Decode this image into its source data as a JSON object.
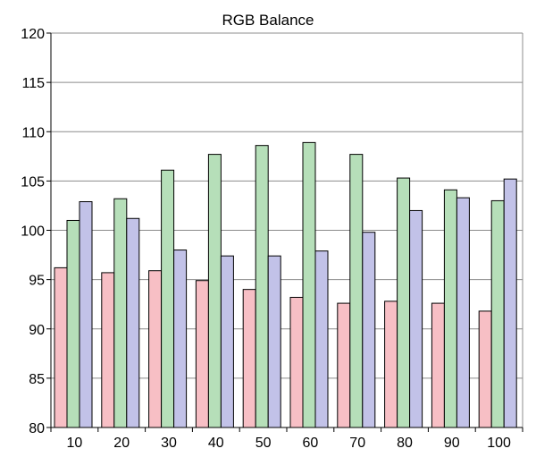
{
  "chart_data": {
    "type": "bar",
    "title": "RGB Balance",
    "xlabel": "",
    "ylabel": "",
    "categories": [
      "10",
      "20",
      "30",
      "40",
      "50",
      "60",
      "70",
      "80",
      "90",
      "100"
    ],
    "ylim": [
      80,
      120
    ],
    "yticks": [
      80,
      85,
      90,
      95,
      100,
      105,
      110,
      115,
      120
    ],
    "grid": true,
    "legend": "none",
    "series": [
      {
        "color": "#f7bfc5",
        "values": [
          96.2,
          95.7,
          95.9,
          94.9,
          94.0,
          93.2,
          92.6,
          92.8,
          92.6,
          91.8
        ]
      },
      {
        "color": "#b6dfb9",
        "values": [
          101.0,
          103.2,
          106.1,
          107.7,
          108.6,
          108.9,
          107.7,
          105.3,
          104.1,
          103.0
        ]
      },
      {
        "color": "#c2c2e8",
        "values": [
          102.9,
          101.2,
          98.0,
          97.4,
          97.4,
          97.9,
          99.8,
          102.0,
          103.3,
          105.2
        ]
      }
    ]
  }
}
